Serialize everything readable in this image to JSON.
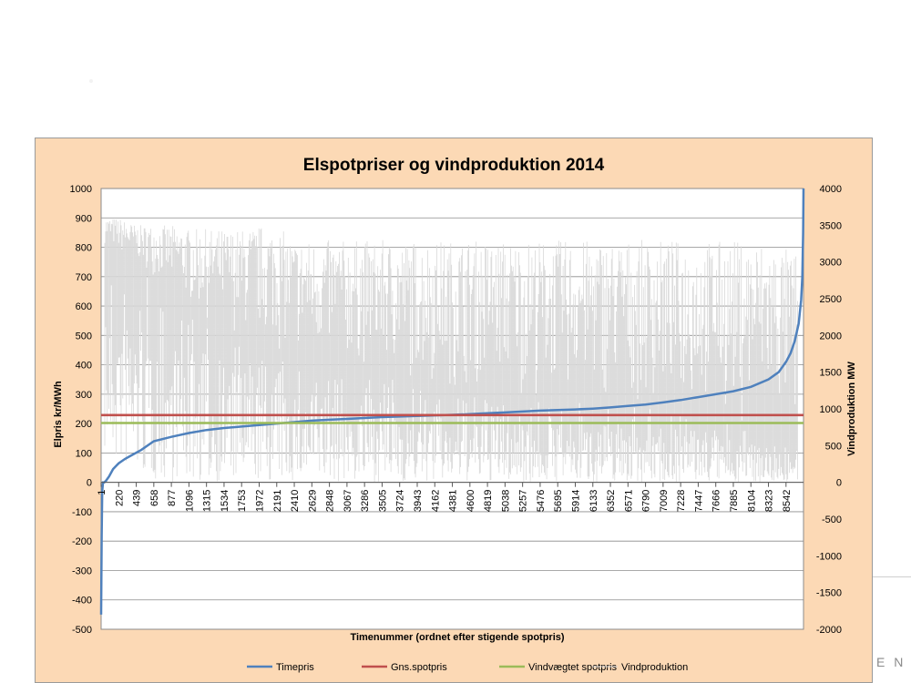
{
  "slide": {
    "corner_text": "E N"
  },
  "chart_data": {
    "type": "line",
    "title": "Elspotpriser og vindproduktion 2014",
    "xlabel": "Timenummer (ordnet efter stigende spotpris)",
    "ylabel": "Elpris kr/MWh",
    "y2label": "Vindproduktion MW",
    "ylim": [
      -500,
      1000
    ],
    "y2lim": [
      -2000,
      4000
    ],
    "y_ticks": [
      -500,
      -400,
      -300,
      -200,
      -100,
      0,
      100,
      200,
      300,
      400,
      500,
      600,
      700,
      800,
      900,
      1000
    ],
    "y2_ticks": [
      -2000,
      -1500,
      -1000,
      -500,
      0,
      500,
      1000,
      1500,
      2000,
      2500,
      3000,
      3500,
      4000
    ],
    "x_ticks": [
      1,
      220,
      439,
      658,
      877,
      1096,
      1315,
      1534,
      1753,
      1972,
      2191,
      2410,
      2629,
      2848,
      3067,
      3286,
      3505,
      3724,
      3943,
      4162,
      4381,
      4600,
      4819,
      5038,
      5257,
      5476,
      5695,
      5914,
      6133,
      6352,
      6571,
      6790,
      7009,
      7228,
      7447,
      7666,
      7885,
      8104,
      8323,
      8542
    ],
    "xlim": [
      1,
      8760
    ],
    "grid": true,
    "legend_position": "bottom",
    "series": [
      {
        "name": "Timepris",
        "axis": "left",
        "color": "#4f81bd",
        "x": [
          1,
          8,
          15,
          25,
          40,
          60,
          100,
          150,
          220,
          300,
          400,
          500,
          658,
          877,
          1096,
          1315,
          1534,
          1753,
          1972,
          2191,
          2410,
          2629,
          2848,
          3067,
          3286,
          3505,
          3724,
          3943,
          4162,
          4381,
          4600,
          4819,
          5038,
          5257,
          5476,
          5695,
          5914,
          6133,
          6352,
          6571,
          6790,
          7009,
          7228,
          7447,
          7666,
          7885,
          8104,
          8323,
          8450,
          8542,
          8600,
          8650,
          8700,
          8730,
          8745,
          8755,
          8760
        ],
        "values": [
          -450,
          -180,
          -30,
          0,
          0,
          5,
          20,
          45,
          65,
          80,
          95,
          110,
          140,
          155,
          168,
          178,
          185,
          190,
          195,
          200,
          205,
          210,
          213,
          216,
          219,
          222,
          224,
          226,
          228,
          230,
          232,
          235,
          238,
          241,
          244,
          246,
          248,
          251,
          255,
          260,
          265,
          272,
          280,
          290,
          300,
          310,
          325,
          350,
          375,
          410,
          440,
          480,
          540,
          620,
          700,
          850,
          1000
        ]
      },
      {
        "name": "Gns.spotpris",
        "axis": "left",
        "color": "#c0504d",
        "x": [
          1,
          8760
        ],
        "values": [
          229,
          229
        ]
      },
      {
        "name": "Vindvægtet spotpris",
        "axis": "left",
        "color": "#9bbb59",
        "x": [
          1,
          8760
        ],
        "values": [
          202,
          202
        ]
      },
      {
        "name": "Vindproduktion",
        "axis": "right",
        "color": "#d9d9d9",
        "x": [
          1,
          220,
          439,
          658,
          877,
          1096,
          1315,
          1534,
          1753,
          1972,
          2191,
          2410,
          2629,
          2848,
          3067,
          3286,
          3505,
          3724,
          3943,
          4162,
          4381,
          4600,
          4819,
          5038,
          5257,
          5476,
          5695,
          5914,
          6133,
          6352,
          6571,
          6790,
          7009,
          7228,
          7447,
          7666,
          7885,
          8104,
          8323,
          8542,
          8760
        ],
        "values": [
          3300,
          3100,
          3000,
          2800,
          2600,
          2400,
          2200,
          2100,
          2000,
          1900,
          1800,
          1700,
          1650,
          1600,
          1550,
          1500,
          1450,
          1400,
          1350,
          1300,
          1280,
          1260,
          1240,
          1220,
          1200,
          1180,
          1150,
          1120,
          1100,
          1080,
          1050,
          1020,
          1000,
          980,
          950,
          900,
          850,
          800,
          700,
          600,
          500
        ],
        "min_values": [
          400,
          200,
          100,
          0,
          0,
          0,
          0,
          0,
          0,
          0,
          0,
          0,
          0,
          0,
          0,
          0,
          0,
          0,
          0,
          0,
          0,
          0,
          0,
          0,
          0,
          0,
          0,
          0,
          0,
          0,
          0,
          0,
          0,
          0,
          0,
          0,
          0,
          0,
          0,
          0,
          0
        ],
        "max_values": [
          3600,
          3600,
          3500,
          3500,
          3500,
          3450,
          3450,
          3450,
          3450,
          3500,
          3500,
          3300,
          3300,
          3300,
          3300,
          3300,
          3300,
          3300,
          3300,
          3300,
          3300,
          3300,
          3300,
          3300,
          3300,
          3300,
          3300,
          3300,
          3300,
          3300,
          3300,
          3300,
          3300,
          3300,
          3300,
          3300,
          3300,
          3300,
          3300,
          3200,
          3100
        ]
      }
    ]
  }
}
